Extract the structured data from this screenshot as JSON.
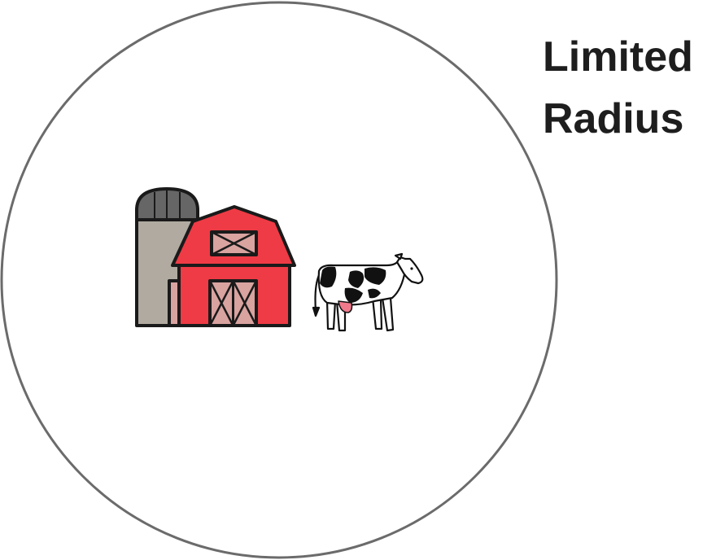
{
  "title": {
    "line1": "Limited",
    "line2": "Radius"
  },
  "colors": {
    "circle_stroke": "#6b6b6b",
    "text": "#1e1e1e",
    "outline": "#1a1a1a",
    "barn_red": "#ef3b45",
    "barn_panel": "#d9a3a0",
    "silo_body": "#b0aaa0",
    "silo_dome": "#666666",
    "cow_white": "#ffffff",
    "cow_black": "#111111",
    "cow_udder": "#f07a8c"
  },
  "icons": {
    "farm": "barn-silo-icon",
    "animal": "cow-icon"
  }
}
